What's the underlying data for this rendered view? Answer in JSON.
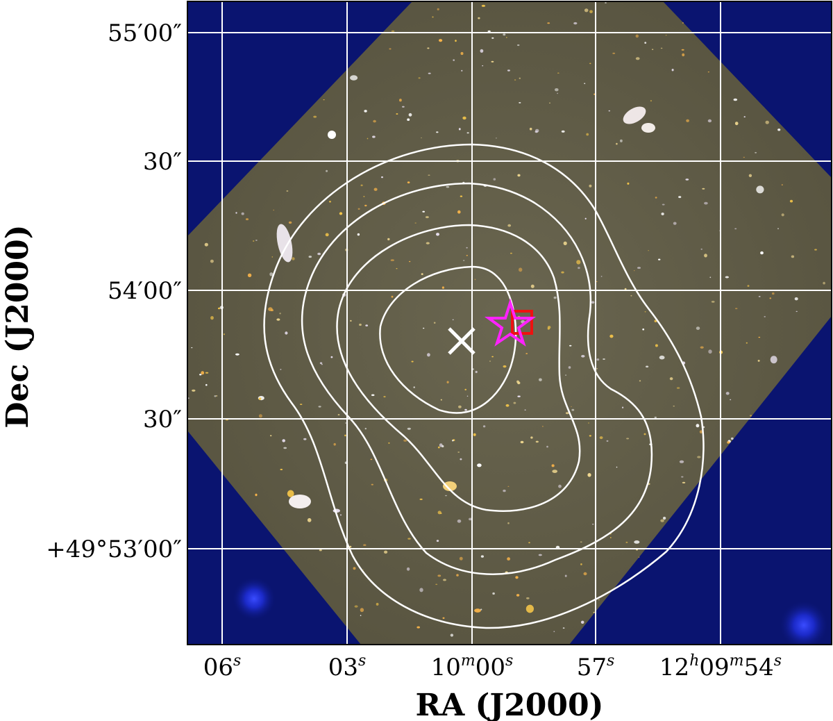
{
  "figure": {
    "xlabel": "RA (J2000)",
    "ylabel": "Dec (J2000)",
    "ra_ticks": [
      {
        "label": "06",
        "sup": "s"
      },
      {
        "label": "03",
        "sup": "s"
      },
      {
        "label": "10",
        "sup": "m",
        "label2": "00",
        "sup2": "s"
      },
      {
        "label": "57",
        "sup": "s"
      },
      {
        "label": "12",
        "sup": "h",
        "label2": "09",
        "sup2": "m",
        "label3": "54",
        "sup3": "s"
      }
    ],
    "dec_ticks": [
      "55′00″",
      "30″",
      "54′00″",
      "30″",
      "+49°53′00″"
    ],
    "grid": true,
    "colors": {
      "background_sky": "#0a1470",
      "field": "#5f5b45",
      "contour": "#ffffff",
      "cross_marker": "#ffffff",
      "star_marker": "#ff22ff",
      "square_marker": "#ee1111",
      "grid": "#ffffff"
    },
    "markers": [
      {
        "type": "cross",
        "name": "cross-marker"
      },
      {
        "type": "star",
        "name": "star-marker"
      },
      {
        "type": "square",
        "name": "square-marker"
      }
    ],
    "contour_levels": 4
  }
}
